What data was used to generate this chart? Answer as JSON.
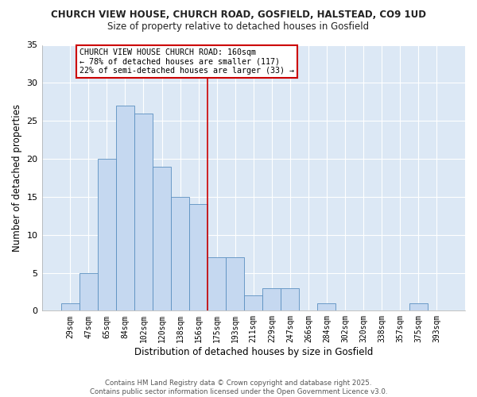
{
  "title1": "CHURCH VIEW HOUSE, CHURCH ROAD, GOSFIELD, HALSTEAD, CO9 1UD",
  "title2": "Size of property relative to detached houses in Gosfield",
  "xlabel": "Distribution of detached houses by size in Gosfield",
  "ylabel": "Number of detached properties",
  "categories": [
    "29sqm",
    "47sqm",
    "65sqm",
    "84sqm",
    "102sqm",
    "120sqm",
    "138sqm",
    "156sqm",
    "175sqm",
    "193sqm",
    "211sqm",
    "229sqm",
    "247sqm",
    "266sqm",
    "284sqm",
    "302sqm",
    "320sqm",
    "338sqm",
    "357sqm",
    "375sqm",
    "393sqm"
  ],
  "values": [
    1,
    5,
    20,
    27,
    26,
    19,
    15,
    14,
    7,
    7,
    2,
    3,
    3,
    0,
    1,
    0,
    0,
    0,
    0,
    1,
    0
  ],
  "bar_color": "#c5d8f0",
  "bar_edge_color": "#5a8fc0",
  "vline_x_idx": 7.5,
  "vline_color": "#cc0000",
  "annotation_text": "CHURCH VIEW HOUSE CHURCH ROAD: 160sqm\n← 78% of detached houses are smaller (117)\n22% of semi-detached houses are larger (33) →",
  "annotation_box_facecolor": "#ffffff",
  "annotation_box_edgecolor": "#cc0000",
  "ylim": [
    0,
    35
  ],
  "yticks": [
    0,
    5,
    10,
    15,
    20,
    25,
    30,
    35
  ],
  "plot_bg_color": "#dce8f5",
  "fig_bg_color": "#ffffff",
  "grid_color": "#ffffff",
  "footer": "Contains HM Land Registry data © Crown copyright and database right 2025.\nContains public sector information licensed under the Open Government Licence v3.0."
}
